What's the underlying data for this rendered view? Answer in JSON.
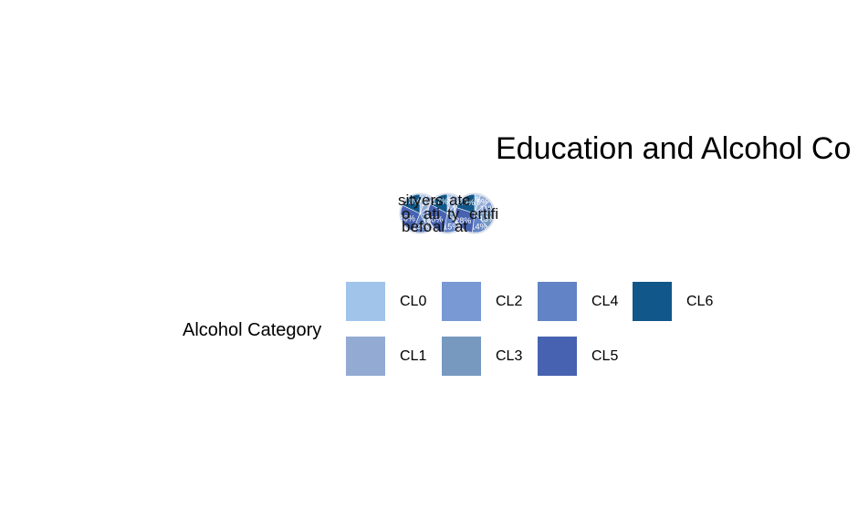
{
  "chart_data": {
    "type": "pie",
    "title": "Education and Alcohol Co",
    "pies": [
      {
        "name": "",
        "slices": [
          {
            "category": "CL0",
            "value": 6
          },
          {
            "category": "CL1",
            "value": 10
          },
          {
            "category": "CL2",
            "value": 14
          },
          {
            "category": "CL3",
            "value": 12
          },
          {
            "category": "CL4",
            "value": 14
          },
          {
            "category": "CL5",
            "value": 26
          },
          {
            "category": "CL6",
            "value": 18
          }
        ]
      },
      {
        "name": "",
        "slices": [
          {
            "category": "CL0",
            "value": 4
          },
          {
            "category": "CL1",
            "value": 8
          },
          {
            "category": "CL2",
            "value": 14
          },
          {
            "category": "CL3",
            "value": 12
          },
          {
            "category": "CL4",
            "value": 15
          },
          {
            "category": "CL5",
            "value": 30
          },
          {
            "category": "CL6",
            "value": 17
          }
        ]
      },
      {
        "name": "",
        "slices": [
          {
            "category": "CL0",
            "value": 5
          },
          {
            "category": "CL1",
            "value": 9
          },
          {
            "category": "CL2",
            "value": 11
          },
          {
            "category": "CL3",
            "value": 13
          },
          {
            "category": "CL4",
            "value": 14
          },
          {
            "category": "CL5",
            "value": 28
          },
          {
            "category": "CL6",
            "value": 20
          }
        ]
      }
    ],
    "overlapping_labels": [
      "sity",
      "ers",
      "ate",
      "o",
      "ati",
      "ty",
      "ertifi",
      "befo",
      "al",
      "at"
    ],
    "legend": {
      "title": "Alcohol Category",
      "placement": "bottom",
      "items": [
        {
          "label": "CL0",
          "color": "#a1c4ea"
        },
        {
          "label": "CL1",
          "color": "#93abd3"
        },
        {
          "label": "CL2",
          "color": "#7899d4"
        },
        {
          "label": "CL3",
          "color": "#7799c0"
        },
        {
          "label": "CL4",
          "color": "#6283c5"
        },
        {
          "label": "CL5",
          "color": "#4762b0"
        },
        {
          "label": "CL6",
          "color": "#11578a"
        }
      ]
    }
  }
}
